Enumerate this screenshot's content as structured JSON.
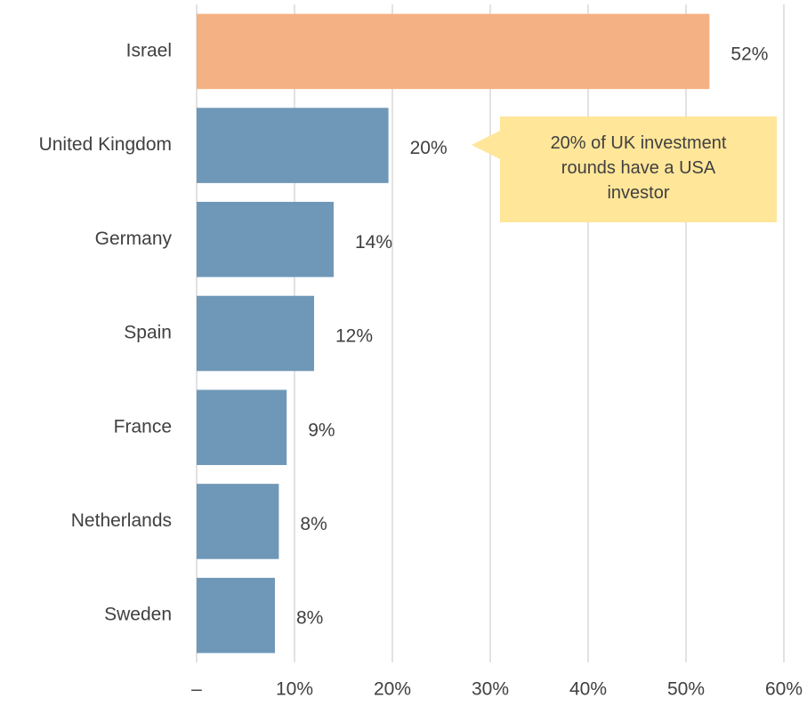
{
  "chart_data": {
    "type": "hbar",
    "categories": [
      "Israel",
      "United Kingdom",
      "Germany",
      "Spain",
      "France",
      "Netherlands",
      "Sweden"
    ],
    "values": [
      52.4,
      19.6,
      14.0,
      12.0,
      9.2,
      8.4,
      8.0
    ],
    "value_labels": [
      "52%",
      "20%",
      "14%",
      "12%",
      "9%",
      "8%",
      "8%"
    ],
    "colors": [
      "#f4b183",
      "#6f98b8",
      "#6f98b8",
      "#6f98b8",
      "#6f98b8",
      "#6f98b8",
      "#6f98b8"
    ],
    "xlim": [
      0,
      60
    ],
    "xticks": [
      {
        "value": 0,
        "label": "–"
      },
      {
        "value": 10,
        "label": "10%"
      },
      {
        "value": 20,
        "label": "20%"
      },
      {
        "value": 30,
        "label": "30%"
      },
      {
        "value": 40,
        "label": "40%"
      },
      {
        "value": 50,
        "label": "50%"
      },
      {
        "value": 60,
        "label": "60%"
      }
    ],
    "grid": true,
    "annotation": "20% of UK investment rounds have a USA investor"
  }
}
